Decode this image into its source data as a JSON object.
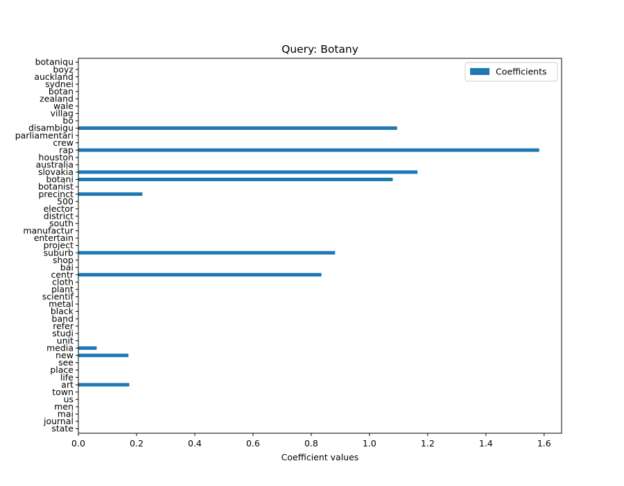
{
  "chart_data": {
    "type": "bar",
    "orientation": "horizontal",
    "title": "Query: Botany",
    "xlabel": "Coefficient values",
    "ylabel": "",
    "xlim": [
      0,
      1.66
    ],
    "xticks": [
      0.0,
      0.2,
      0.4,
      0.6,
      0.8,
      1.0,
      1.2,
      1.4,
      1.6
    ],
    "xtick_labels": [
      "0.0",
      "0.2",
      "0.4",
      "0.6",
      "0.8",
      "1.0",
      "1.2",
      "1.4",
      "1.6"
    ],
    "grid": false,
    "legend_position": "top-right",
    "colors": {
      "bar": "#1f77b4"
    },
    "categories": [
      "state",
      "journal",
      "mai",
      "men",
      "us",
      "town",
      "art",
      "life",
      "place",
      "see",
      "new",
      "media",
      "unit",
      "studi",
      "refer",
      "band",
      "black",
      "metal",
      "scientif",
      "plant",
      "cloth",
      "centr",
      "bai",
      "shop",
      "suburb",
      "project",
      "entertain",
      "manufactur",
      "south",
      "district",
      "elector",
      "500",
      "precinct",
      "botanist",
      "botani",
      "slovakia",
      "australia",
      "houston",
      "rap",
      "crew",
      "parliamentari",
      "disambigu",
      "bo",
      "villag",
      "wale",
      "zealand",
      "botan",
      "sydnei",
      "auckland",
      "boyz",
      "botaniqu"
    ],
    "series": [
      {
        "name": "Coefficients",
        "values": [
          0,
          0,
          0,
          0,
          0,
          0,
          0.175,
          0,
          0,
          0,
          0.172,
          0.063,
          0,
          0,
          0,
          0,
          0,
          0,
          0,
          0,
          0,
          0.835,
          0,
          0,
          0.882,
          0,
          0,
          0,
          0,
          0,
          0,
          0,
          0.22,
          0,
          1.08,
          1.165,
          0,
          0,
          1.583,
          0,
          0,
          1.095,
          0,
          0,
          0,
          0,
          0,
          0,
          0,
          0,
          0
        ]
      }
    ]
  }
}
